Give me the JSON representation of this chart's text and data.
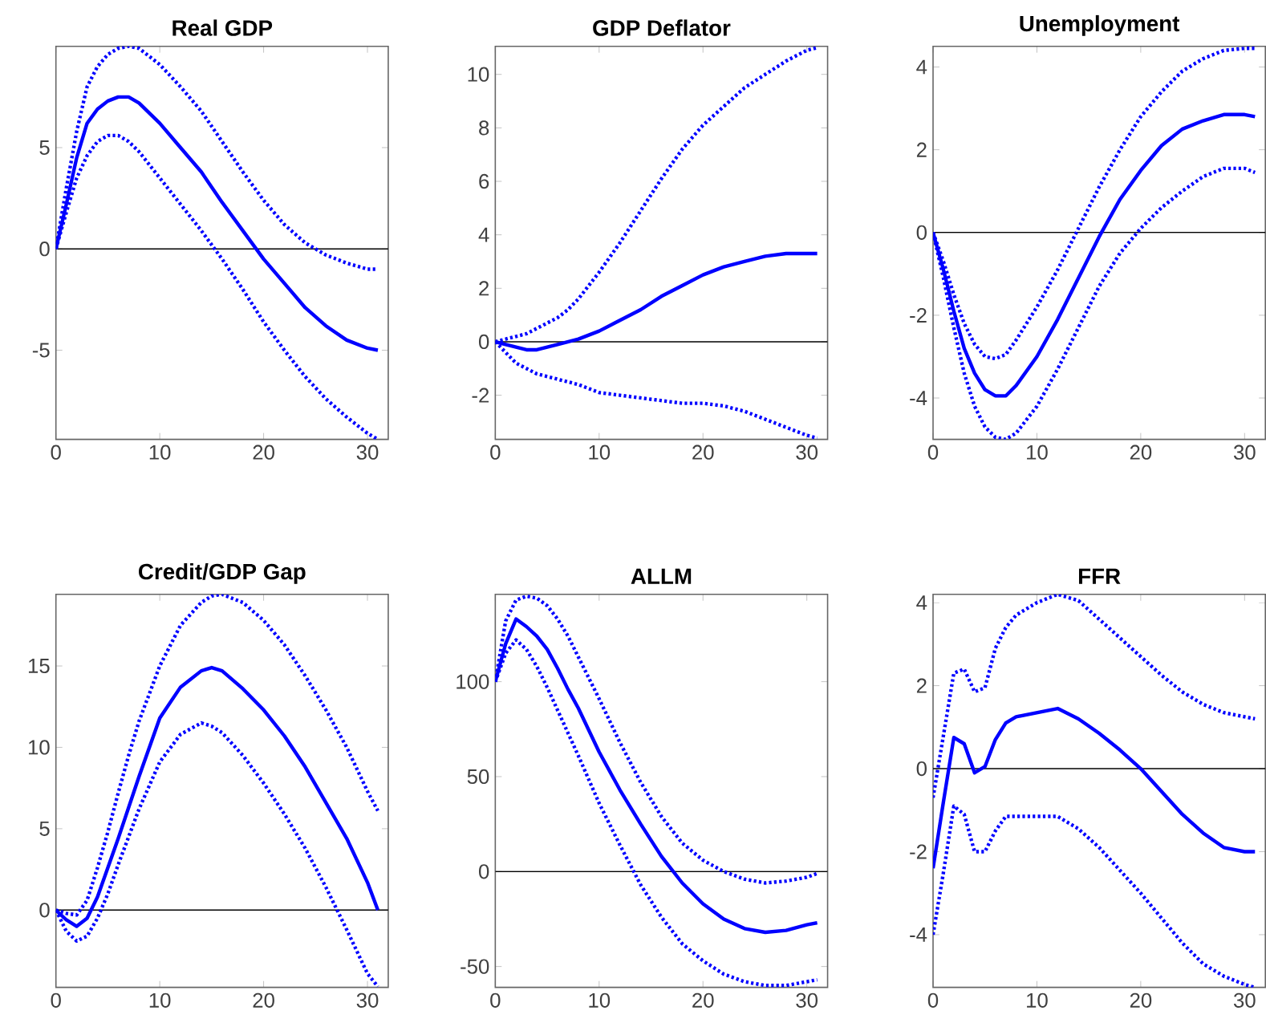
{
  "chart_data": [
    {
      "type": "line",
      "title": "Real GDP",
      "x": [
        0,
        1,
        2,
        3,
        4,
        5,
        6,
        7,
        8,
        10,
        12,
        14,
        16,
        18,
        20,
        22,
        24,
        26,
        28,
        30,
        31
      ],
      "xlim": [
        0,
        32
      ],
      "xticks": [
        0,
        10,
        20,
        30
      ],
      "ylim": [
        -9.4,
        10
      ],
      "yticks": [
        -5,
        0,
        5
      ],
      "ref_lines": [
        {
          "axis": "y",
          "value": 0,
          "color": "#000000"
        }
      ],
      "series": [
        {
          "color": "#0000ff",
          "line_style": "solid",
          "values": [
            0,
            2.2,
            4.5,
            6.2,
            6.9,
            7.3,
            7.5,
            7.5,
            7.2,
            6.2,
            5,
            3.8,
            2.3,
            0.9,
            -0.5,
            -1.7,
            -2.9,
            -3.8,
            -4.5,
            -4.9,
            -5.0
          ]
        },
        {
          "color": "#0000ff",
          "line_style": "dotted",
          "values": [
            0,
            3,
            5.8,
            8,
            9,
            9.6,
            9.9,
            10,
            9.9,
            9.1,
            8,
            6.8,
            5.3,
            3.8,
            2.4,
            1.2,
            0.3,
            -0.3,
            -0.7,
            -1.0,
            -1.0
          ]
        },
        {
          "color": "#0000ff",
          "line_style": "dotted",
          "values": [
            0,
            1.8,
            3.5,
            4.6,
            5.3,
            5.6,
            5.6,
            5.3,
            4.8,
            3.5,
            2.2,
            0.9,
            -0.5,
            -2,
            -3.6,
            -5,
            -6.3,
            -7.4,
            -8.3,
            -9.1,
            -9.4
          ]
        }
      ]
    },
    {
      "type": "line",
      "title": "GDP Deflator",
      "x": [
        0,
        1,
        2,
        3,
        4,
        5,
        6,
        7,
        8,
        10,
        12,
        14,
        16,
        18,
        20,
        22,
        24,
        26,
        28,
        30,
        31
      ],
      "xlim": [
        0,
        32
      ],
      "xticks": [
        0,
        10,
        20,
        30
      ],
      "ylim": [
        -3.65,
        11.05
      ],
      "yticks": [
        -2,
        0,
        2,
        4,
        6,
        8,
        10
      ],
      "ref_lines": [
        {
          "axis": "y",
          "value": 0,
          "color": "#000000"
        }
      ],
      "series": [
        {
          "color": "#0000ff",
          "line_style": "solid",
          "values": [
            0,
            -0.1,
            -0.2,
            -0.3,
            -0.3,
            -0.2,
            -0.1,
            0,
            0.1,
            0.4,
            0.8,
            1.2,
            1.7,
            2.1,
            2.5,
            2.8,
            3.0,
            3.2,
            3.3,
            3.3,
            3.3
          ]
        },
        {
          "color": "#0000ff",
          "line_style": "dotted",
          "values": [
            0,
            0.1,
            0.2,
            0.3,
            0.5,
            0.7,
            0.9,
            1.2,
            1.6,
            2.6,
            3.7,
            4.9,
            6.1,
            7.2,
            8.1,
            8.8,
            9.5,
            10,
            10.5,
            10.9,
            11.0
          ]
        },
        {
          "color": "#0000ff",
          "line_style": "dotted",
          "values": [
            0,
            -0.4,
            -0.8,
            -1.0,
            -1.2,
            -1.3,
            -1.4,
            -1.5,
            -1.6,
            -1.9,
            -2.0,
            -2.1,
            -2.2,
            -2.3,
            -2.3,
            -2.4,
            -2.6,
            -2.9,
            -3.2,
            -3.5,
            -3.6
          ]
        }
      ]
    },
    {
      "type": "line",
      "title": "Unemployment",
      "x": [
        0,
        1,
        2,
        3,
        4,
        5,
        6,
        7,
        8,
        10,
        12,
        14,
        16,
        18,
        20,
        22,
        24,
        26,
        28,
        30,
        31
      ],
      "xlim": [
        0,
        32
      ],
      "xticks": [
        0,
        10,
        20,
        30
      ],
      "ylim": [
        -5,
        4.5
      ],
      "yticks": [
        -4,
        -2,
        0,
        2,
        4
      ],
      "ref_lines": [
        {
          "axis": "y",
          "value": 0,
          "color": "#000000"
        }
      ],
      "series": [
        {
          "color": "#0000ff",
          "line_style": "solid",
          "values": [
            0,
            -0.9,
            -1.9,
            -2.8,
            -3.4,
            -3.8,
            -3.95,
            -3.95,
            -3.7,
            -3.0,
            -2.1,
            -1.1,
            -0.1,
            0.8,
            1.5,
            2.1,
            2.5,
            2.7,
            2.85,
            2.85,
            2.8
          ]
        },
        {
          "color": "#0000ff",
          "line_style": "dotted",
          "values": [
            0,
            -0.7,
            -1.5,
            -2.2,
            -2.7,
            -3.0,
            -3.05,
            -2.95,
            -2.6,
            -1.8,
            -0.9,
            0.1,
            1.1,
            2.0,
            2.8,
            3.4,
            3.9,
            4.2,
            4.4,
            4.45,
            4.45
          ]
        },
        {
          "color": "#0000ff",
          "line_style": "dotted",
          "values": [
            0,
            -1.1,
            -2.3,
            -3.4,
            -4.2,
            -4.7,
            -4.95,
            -5.0,
            -4.85,
            -4.2,
            -3.3,
            -2.3,
            -1.3,
            -0.5,
            0.1,
            0.6,
            1.0,
            1.35,
            1.55,
            1.55,
            1.45
          ]
        }
      ]
    },
    {
      "type": "line",
      "title": "Credit/GDP Gap",
      "x": [
        0,
        1,
        2,
        3,
        4,
        5,
        6,
        7,
        8,
        10,
        12,
        14,
        15,
        16,
        18,
        20,
        22,
        24,
        26,
        28,
        30,
        31
      ],
      "xlim": [
        0,
        32
      ],
      "xticks": [
        0,
        10,
        20,
        30
      ],
      "ylim": [
        -4.75,
        19.4
      ],
      "yticks": [
        0,
        5,
        10,
        15
      ],
      "ref_lines": [
        {
          "axis": "y",
          "value": 0,
          "color": "#000000"
        }
      ],
      "series": [
        {
          "color": "#0000ff",
          "line_style": "solid",
          "values": [
            0,
            -0.6,
            -1.0,
            -0.5,
            0.8,
            2.6,
            4.4,
            6.3,
            8.2,
            11.8,
            13.7,
            14.7,
            14.9,
            14.7,
            13.6,
            12.3,
            10.7,
            8.8,
            6.6,
            4.4,
            1.7,
            0
          ]
        },
        {
          "color": "#0000ff",
          "line_style": "dotted",
          "values": [
            0,
            -0.2,
            -0.3,
            0.6,
            2.6,
            4.8,
            7.2,
            9.5,
            11.6,
            15,
            17.5,
            18.9,
            19.3,
            19.4,
            18.9,
            17.8,
            16.3,
            14.4,
            12.3,
            10.0,
            7.3,
            6.1
          ]
        },
        {
          "color": "#0000ff",
          "line_style": "dotted",
          "values": [
            0,
            -1.3,
            -1.9,
            -1.6,
            -0.5,
            1.0,
            2.8,
            4.5,
            6.2,
            9.1,
            10.8,
            11.5,
            11.3,
            10.9,
            9.5,
            7.8,
            5.9,
            3.8,
            1.4,
            -1.2,
            -3.9,
            -4.7
          ]
        }
      ]
    },
    {
      "type": "line",
      "title": "ALLM",
      "x": [
        0,
        1,
        2,
        3,
        4,
        5,
        6,
        7,
        8,
        10,
        12,
        14,
        16,
        18,
        20,
        22,
        24,
        26,
        28,
        30,
        31
      ],
      "xlim": [
        0,
        32
      ],
      "xticks": [
        0,
        10,
        20,
        30
      ],
      "ylim": [
        -61,
        146
      ],
      "yticks": [
        -50,
        0,
        50,
        100
      ],
      "ref_lines": [
        {
          "axis": "y",
          "value": 0,
          "color": "#000000"
        }
      ],
      "series": [
        {
          "color": "#0000ff",
          "line_style": "solid",
          "values": [
            100,
            120,
            133,
            129,
            124,
            117,
            107,
            96,
            86,
            63,
            43,
            25,
            8,
            -6,
            -17,
            -25,
            -30,
            -32,
            -31,
            -28,
            -27
          ]
        },
        {
          "color": "#0000ff",
          "line_style": "dotted",
          "values": [
            100,
            132,
            143,
            145,
            144,
            140,
            133,
            124,
            113,
            91,
            68,
            47,
            29,
            15,
            6,
            0,
            -4,
            -6,
            -5,
            -3,
            -1
          ]
        },
        {
          "color": "#0000ff",
          "line_style": "dotted",
          "values": [
            100,
            115,
            122,
            117,
            108,
            97,
            85,
            73,
            61,
            36,
            14,
            -7,
            -24,
            -38,
            -47,
            -54,
            -58,
            -60,
            -60,
            -58,
            -57
          ]
        }
      ]
    },
    {
      "type": "line",
      "title": "FFR",
      "x": [
        0,
        1,
        2,
        3,
        4,
        5,
        6,
        7,
        8,
        10,
        12,
        14,
        16,
        18,
        20,
        22,
        24,
        26,
        28,
        30,
        31
      ],
      "xlim": [
        0,
        32
      ],
      "xticks": [
        0,
        10,
        20,
        30
      ],
      "ylim": [
        -5.27,
        4.2
      ],
      "yticks": [
        -4,
        -2,
        0,
        2,
        4
      ],
      "ref_lines": [
        {
          "axis": "y",
          "value": 0,
          "color": "#000000"
        }
      ],
      "series": [
        {
          "color": "#0000ff",
          "line_style": "solid",
          "values": [
            -2.4,
            -0.8,
            0.75,
            0.6,
            -0.1,
            0.05,
            0.7,
            1.1,
            1.25,
            1.35,
            1.45,
            1.2,
            0.85,
            0.45,
            0,
            -0.55,
            -1.1,
            -1.55,
            -1.9,
            -2.0,
            -2.0
          ]
        },
        {
          "color": "#0000ff",
          "line_style": "dotted",
          "values": [
            -0.7,
            0.8,
            2.3,
            2.4,
            1.85,
            1.95,
            2.9,
            3.4,
            3.7,
            4.0,
            4.2,
            4.05,
            3.6,
            3.15,
            2.7,
            2.25,
            1.85,
            1.55,
            1.35,
            1.25,
            1.2
          ]
        },
        {
          "color": "#0000ff",
          "line_style": "dotted",
          "values": [
            -4.0,
            -2.5,
            -0.9,
            -1.1,
            -2.0,
            -2.0,
            -1.5,
            -1.15,
            -1.15,
            -1.15,
            -1.15,
            -1.45,
            -1.9,
            -2.45,
            -3.0,
            -3.6,
            -4.2,
            -4.7,
            -5.0,
            -5.2,
            -5.27
          ]
        }
      ]
    }
  ]
}
